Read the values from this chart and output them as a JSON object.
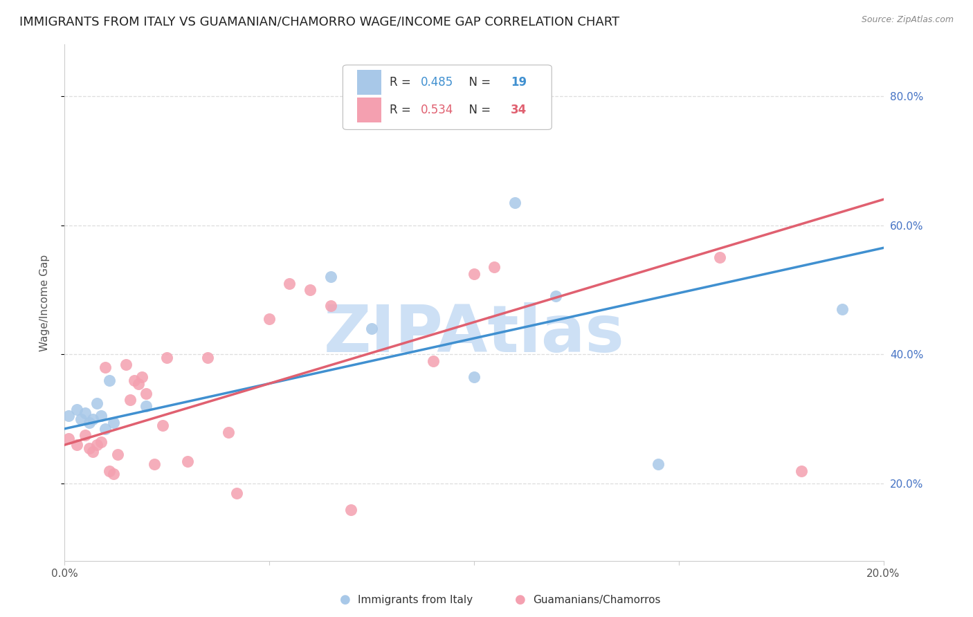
{
  "title": "IMMIGRANTS FROM ITALY VS GUAMANIAN/CHAMORRO WAGE/INCOME GAP CORRELATION CHART",
  "source": "Source: ZipAtlas.com",
  "ylabel": "Wage/Income Gap",
  "xlim": [
    0.0,
    0.2
  ],
  "ylim": [
    0.08,
    0.88
  ],
  "ytick_labels": [
    "20.0%",
    "40.0%",
    "60.0%",
    "80.0%"
  ],
  "ytick_values": [
    0.2,
    0.4,
    0.6,
    0.8
  ],
  "xtick_values": [
    0.0,
    0.05,
    0.1,
    0.15,
    0.2
  ],
  "xtick_labels": [
    "0.0%",
    "",
    "",
    "",
    "20.0%"
  ],
  "legend_label1": "Immigrants from Italy",
  "legend_label2": "Guamanians/Chamorros",
  "R1": 0.485,
  "N1": 19,
  "R2": 0.534,
  "N2": 34,
  "blue_color": "#a8c8e8",
  "pink_color": "#f4a0b0",
  "blue_line_color": "#4090d0",
  "pink_line_color": "#e06070",
  "blue_scatter_x": [
    0.001,
    0.003,
    0.004,
    0.005,
    0.006,
    0.007,
    0.008,
    0.009,
    0.01,
    0.011,
    0.012,
    0.02,
    0.065,
    0.075,
    0.1,
    0.11,
    0.12,
    0.145,
    0.19
  ],
  "blue_scatter_y": [
    0.305,
    0.315,
    0.3,
    0.31,
    0.295,
    0.3,
    0.325,
    0.305,
    0.285,
    0.36,
    0.295,
    0.32,
    0.52,
    0.44,
    0.365,
    0.635,
    0.49,
    0.23,
    0.47
  ],
  "pink_scatter_x": [
    0.001,
    0.003,
    0.005,
    0.006,
    0.007,
    0.008,
    0.009,
    0.01,
    0.011,
    0.012,
    0.013,
    0.015,
    0.016,
    0.017,
    0.018,
    0.019,
    0.02,
    0.022,
    0.024,
    0.025,
    0.03,
    0.035,
    0.04,
    0.042,
    0.05,
    0.055,
    0.06,
    0.065,
    0.07,
    0.09,
    0.1,
    0.105,
    0.16,
    0.18
  ],
  "pink_scatter_y": [
    0.27,
    0.26,
    0.275,
    0.255,
    0.25,
    0.26,
    0.265,
    0.38,
    0.22,
    0.215,
    0.245,
    0.385,
    0.33,
    0.36,
    0.355,
    0.365,
    0.34,
    0.23,
    0.29,
    0.395,
    0.235,
    0.395,
    0.28,
    0.185,
    0.455,
    0.51,
    0.5,
    0.475,
    0.16,
    0.39,
    0.525,
    0.535,
    0.55,
    0.22
  ],
  "blue_line_x0": 0.0,
  "blue_line_y0": 0.285,
  "blue_line_x1": 0.2,
  "blue_line_y1": 0.565,
  "pink_line_x0": 0.0,
  "pink_line_y0": 0.26,
  "pink_line_x1": 0.2,
  "pink_line_y1": 0.64,
  "background_color": "#ffffff",
  "grid_color": "#dddddd",
  "title_fontsize": 13,
  "axis_label_fontsize": 11,
  "tick_fontsize": 11,
  "right_tick_color": "#4472c4",
  "watermark_text": "ZIPAtlas",
  "watermark_color": "#cde0f5",
  "watermark_fontsize": 68
}
